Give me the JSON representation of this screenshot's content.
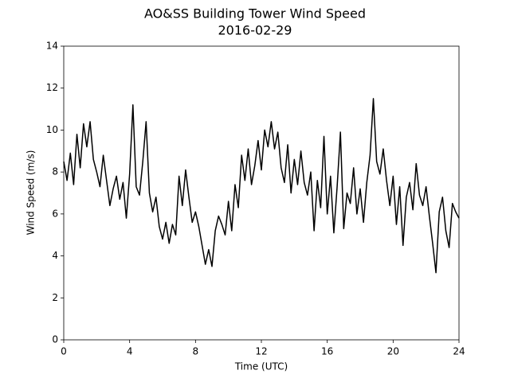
{
  "chart_data": {
    "type": "line",
    "title": "AO&SS Building Tower Wind Speed",
    "subtitle": "2016-02-29",
    "x_label": "Time (UTC)",
    "y_label": "Wind Speed (m/s)",
    "color": "#000000",
    "xlim": [
      0,
      24
    ],
    "xticks": [
      0,
      4,
      8,
      12,
      16,
      20,
      24
    ],
    "ylim": [
      0,
      14
    ],
    "yticks": [
      0,
      2,
      4,
      6,
      8,
      10,
      12,
      14
    ],
    "x": [
      0,
      0.2,
      0.4,
      0.6,
      0.8,
      1,
      1.2,
      1.4,
      1.6,
      1.8,
      2,
      2.2,
      2.4,
      2.6,
      2.8,
      3,
      3.2,
      3.4,
      3.6,
      3.8,
      4,
      4.2,
      4.4,
      4.6,
      4.8,
      5,
      5.2,
      5.4,
      5.6,
      5.8,
      6,
      6.2,
      6.4,
      6.6,
      6.8,
      7,
      7.2,
      7.4,
      7.6,
      7.8,
      8,
      8.2,
      8.4,
      8.6,
      8.8,
      9,
      9.2,
      9.4,
      9.6,
      9.8,
      10,
      10.2,
      10.4,
      10.6,
      10.8,
      11,
      11.2,
      11.4,
      11.6,
      11.8,
      12,
      12.2,
      12.4,
      12.6,
      12.8,
      13,
      13.2,
      13.4,
      13.6,
      13.8,
      14,
      14.2,
      14.4,
      14.6,
      14.8,
      15,
      15.2,
      15.4,
      15.6,
      15.8,
      16,
      16.2,
      16.4,
      16.6,
      16.8,
      17,
      17.2,
      17.4,
      17.6,
      17.8,
      18,
      18.2,
      18.4,
      18.6,
      18.8,
      19,
      19.2,
      19.4,
      19.6,
      19.8,
      20,
      20.2,
      20.4,
      20.6,
      20.8,
      21,
      21.2,
      21.4,
      21.6,
      21.8,
      22,
      22.2,
      22.4,
      22.6,
      22.8,
      23,
      23.2,
      23.4,
      23.6,
      23.8,
      24
    ],
    "values": [
      8.5,
      7.6,
      8.9,
      7.4,
      9.8,
      8.2,
      10.3,
      9.2,
      10.4,
      8.6,
      8.0,
      7.3,
      8.8,
      7.6,
      6.4,
      7.2,
      7.8,
      6.7,
      7.5,
      5.8,
      7.9,
      11.2,
      7.3,
      6.9,
      8.5,
      10.4,
      7.0,
      6.1,
      6.8,
      5.4,
      4.8,
      5.6,
      4.6,
      5.5,
      5.0,
      7.8,
      6.4,
      8.1,
      6.8,
      5.6,
      6.1,
      5.4,
      4.5,
      3.6,
      4.3,
      3.5,
      5.2,
      5.9,
      5.5,
      5.0,
      6.6,
      5.2,
      7.4,
      6.3,
      8.8,
      7.6,
      9.1,
      7.4,
      8.3,
      9.5,
      8.1,
      10.0,
      9.2,
      10.4,
      9.1,
      9.9,
      8.2,
      7.5,
      9.3,
      7.0,
      8.6,
      7.4,
      9.0,
      7.5,
      6.9,
      8.0,
      5.2,
      7.6,
      6.3,
      9.7,
      6.0,
      7.8,
      5.1,
      7.3,
      9.9,
      5.3,
      7.0,
      6.5,
      8.2,
      6.0,
      7.2,
      5.6,
      7.5,
      8.8,
      11.5,
      8.5,
      7.9,
      9.1,
      7.6,
      6.4,
      7.8,
      5.5,
      7.3,
      4.5,
      6.8,
      7.5,
      6.2,
      8.4,
      6.9,
      6.4,
      7.3,
      5.9,
      4.6,
      3.2,
      6.1,
      6.8,
      5.2,
      4.4,
      6.5,
      6.1,
      5.8
    ]
  }
}
